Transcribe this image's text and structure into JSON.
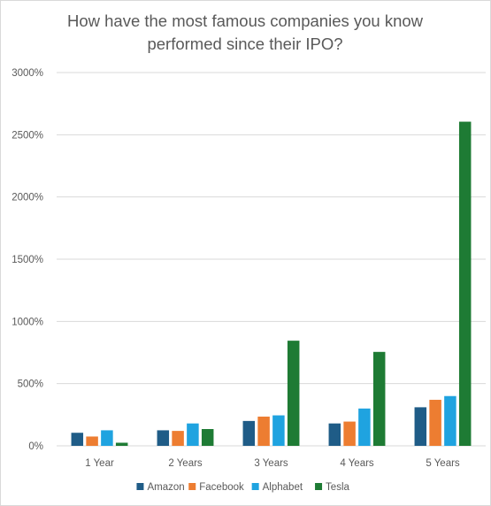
{
  "chart_data": {
    "type": "bar",
    "title": "How have the most famous companies you know performed since their IPO?",
    "title_lines": [
      "How have the most famous companies you know",
      "performed since their IPO?"
    ],
    "xlabel": "",
    "ylabel": "",
    "categories": [
      "1 Year",
      "2 Years",
      "3 Years",
      "4 Years",
      "5 Years"
    ],
    "series": [
      {
        "name": "Amazon",
        "color": "#1f5c87",
        "values": [
          105,
          125,
          200,
          180,
          310
        ]
      },
      {
        "name": "Facebook",
        "color": "#ed7d31",
        "values": [
          75,
          120,
          235,
          195,
          370
        ]
      },
      {
        "name": "Alphabet",
        "color": "#1fa3e0",
        "values": [
          125,
          180,
          245,
          300,
          400
        ]
      },
      {
        "name": "Tesla",
        "color": "#1e7b34",
        "values": [
          25,
          135,
          845,
          755,
          2605
        ]
      }
    ],
    "ylim": [
      0,
      3000
    ],
    "yticks": [
      0,
      500,
      1000,
      1500,
      2000,
      2500,
      3000
    ],
    "ytick_labels": [
      "0%",
      "500%",
      "1000%",
      "1500%",
      "2000%",
      "2500%",
      "3000%"
    ],
    "grid": true,
    "legend_position": "bottom"
  }
}
